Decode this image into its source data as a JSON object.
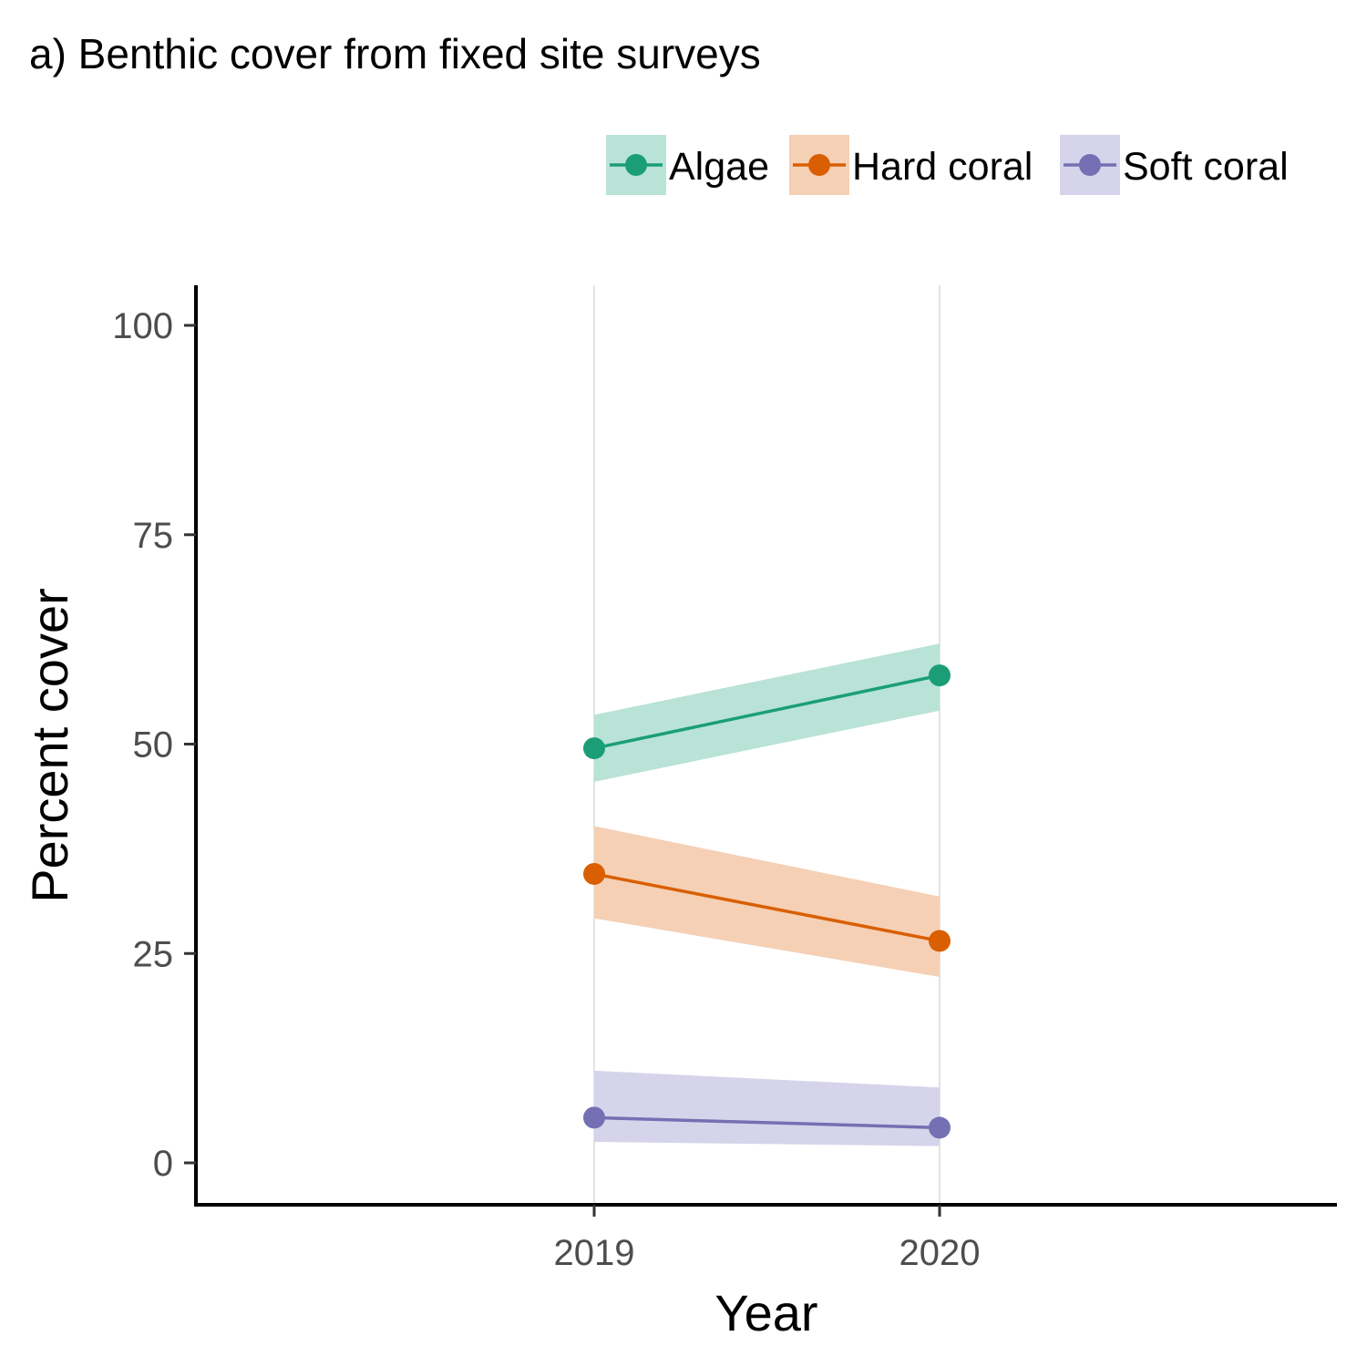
{
  "chart_data": {
    "type": "line",
    "title": "a) Benthic cover from fixed site surveys",
    "xlabel": "Year",
    "ylabel": "Percent cover",
    "x": [
      2019,
      2020
    ],
    "x_tick_labels": [
      "2019",
      "2020"
    ],
    "y_ticks": [
      0,
      25,
      50,
      75,
      100
    ],
    "y_tick_labels": [
      "0",
      "25",
      "50",
      "75",
      "100"
    ],
    "ylim": [
      -5,
      105
    ],
    "grid": "vertical major lines at x ticks",
    "legend_position": "top-right",
    "series": [
      {
        "name": "Algae",
        "color": "#1b9e77",
        "ribbon_color": "#b9e3d6",
        "values": [
          49.5,
          58.2
        ],
        "lower": [
          45.5,
          54.0
        ],
        "upper": [
          53.5,
          62.0
        ]
      },
      {
        "name": "Hard coral",
        "color": "#d95f02",
        "ribbon_color": "#f5d0b5",
        "values": [
          34.5,
          26.5
        ],
        "lower": [
          29.2,
          22.2
        ],
        "upper": [
          40.2,
          31.8
        ]
      },
      {
        "name": "Soft coral",
        "color": "#7570b3",
        "ribbon_color": "#d6d4ea",
        "values": [
          5.4,
          4.2
        ],
        "lower": [
          2.5,
          2.0
        ],
        "upper": [
          11.0,
          9.0
        ]
      }
    ]
  }
}
